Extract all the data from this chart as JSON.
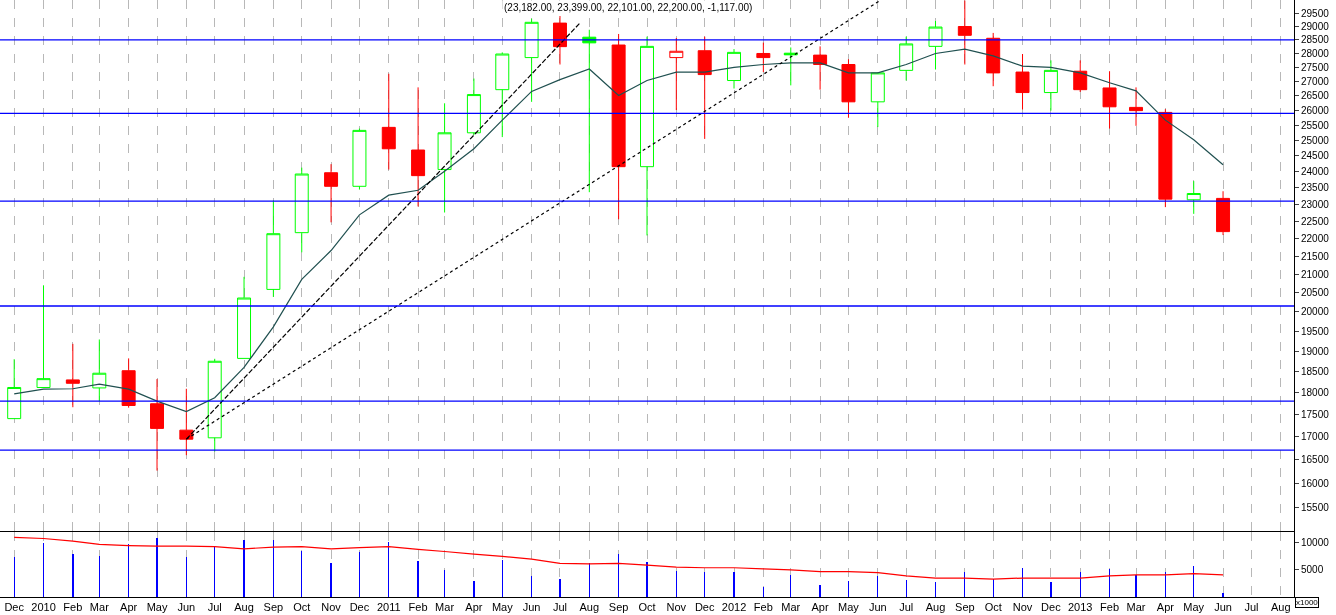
{
  "chart_data": [
    {
      "type": "candlestick",
      "title": "(23,182.00, 23,399.00, 22,101.00, 22,200.00, -1,117.00)",
      "x": [
        "2009-12",
        "2010-01",
        "2010-02",
        "2010-03",
        "2010-04",
        "2010-05",
        "2010-06",
        "2010-07",
        "2010-08",
        "2010-09",
        "2010-10",
        "2010-11",
        "2010-12",
        "2011-01",
        "2011-02",
        "2011-03",
        "2011-04",
        "2011-05",
        "2011-06",
        "2011-07",
        "2011-08",
        "2011-09",
        "2011-10",
        "2011-11",
        "2011-12",
        "2012-01",
        "2012-02",
        "2012-03",
        "2012-04",
        "2012-05",
        "2012-06",
        "2012-07",
        "2012-08",
        "2012-09",
        "2012-10",
        "2012-11",
        "2012-12",
        "2013-01",
        "2013-02",
        "2013-03",
        "2013-04",
        "2013-05",
        "2013-06"
      ],
      "ohlc": [
        [
          17400,
          18800,
          17400,
          18120
        ],
        [
          18120,
          20700,
          18120,
          18330
        ],
        [
          18300,
          19180,
          17660,
          18220
        ],
        [
          18110,
          19290,
          17800,
          18460
        ],
        [
          18520,
          18820,
          17650,
          17700
        ],
        [
          17740,
          18320,
          16260,
          17180
        ],
        [
          17140,
          18090,
          16590,
          16940
        ],
        [
          16970,
          18810,
          16670,
          18750
        ],
        [
          18820,
          20930,
          18820,
          20360
        ],
        [
          20590,
          23120,
          20390,
          22140
        ],
        [
          22170,
          24130,
          21610,
          23930
        ],
        [
          23970,
          24240,
          22470,
          23550
        ],
        [
          23550,
          25390,
          23450,
          25330
        ],
        [
          25430,
          27270,
          24070,
          24730
        ],
        [
          24690,
          26790,
          22940,
          23880
        ],
        [
          24070,
          26240,
          22760,
          25250
        ],
        [
          25250,
          27100,
          25180,
          26540
        ],
        [
          26710,
          28040,
          25110,
          27980
        ],
        [
          27850,
          29300,
          26290,
          29160
        ],
        [
          29130,
          29400,
          27600,
          28250
        ],
        [
          28600,
          28880,
          23370,
          28390
        ],
        [
          28310,
          28720,
          22560,
          24160
        ],
        [
          24160,
          28620,
          22090,
          28260
        ],
        [
          27850,
          28570,
          26010,
          28080
        ],
        [
          28100,
          28620,
          25050,
          27240
        ],
        [
          27030,
          28160,
          26750,
          28040
        ],
        [
          28000,
          28400,
          27330,
          27850
        ],
        [
          28010,
          28220,
          26860,
          27950
        ],
        [
          27940,
          28260,
          26710,
          27600
        ],
        [
          27600,
          27790,
          25750,
          26290
        ],
        [
          26290,
          27300,
          25440,
          27300
        ],
        [
          27390,
          28620,
          27030,
          28350
        ],
        [
          28260,
          29210,
          27420,
          28980
        ],
        [
          29000,
          30000,
          27600,
          28670
        ],
        [
          28560,
          28760,
          26830,
          27300
        ],
        [
          27330,
          27980,
          26030,
          26610
        ],
        [
          26610,
          27750,
          25990,
          27390
        ],
        [
          27360,
          27750,
          26630,
          26710
        ],
        [
          26770,
          27360,
          25390,
          26120
        ],
        [
          26100,
          26790,
          25480,
          25990
        ],
        [
          25930,
          26040,
          22920,
          23160
        ],
        [
          23140,
          23710,
          22720,
          23330
        ],
        [
          23182,
          23399,
          22101,
          22200
        ]
      ],
      "colors": [
        "#00ff00",
        "#00ff00",
        "#ff0000",
        "#00ff00",
        "#ff0000",
        "#ff0000",
        "#ff0000",
        "#00ff00",
        "#00ff00",
        "#00ff00",
        "#00ff00",
        "#ff0000",
        "#00ff00",
        "#ff0000",
        "#ff0000",
        "#00ff00",
        "#00ff00",
        "#00ff00",
        "#00ff00",
        "#ff0000",
        "#00ff00",
        "#ff0000",
        "#00ff00",
        "#ff0000",
        "#ff0000",
        "#00ff00",
        "#ff0000",
        "#00ff00",
        "#ff0000",
        "#ff0000",
        "#00ff00",
        "#00ff00",
        "#00ff00",
        "#ff0000",
        "#ff0000",
        "#ff0000",
        "#00ff00",
        "#ff0000",
        "#ff0000",
        "#ff0000",
        "#ff0000",
        "#00ff00",
        "#ff0000"
      ],
      "series": [
        {
          "type": "line",
          "color": "#205050",
          "values": [
            17970,
            18080,
            18090,
            18200,
            18080,
            17800,
            17560,
            17880,
            18600,
            19610,
            20860,
            21660,
            22690,
            23280,
            23430,
            24020,
            24730,
            25670,
            26650,
            27060,
            27440,
            26510,
            27030,
            27330,
            27330,
            27500,
            27600,
            27660,
            27660,
            27300,
            27300,
            27600,
            28000,
            28160,
            27910,
            27540,
            27500,
            27300,
            26950,
            26670,
            25670,
            25020,
            24220
          ]
        },
        {
          "type": "line",
          "color": "#000000",
          "line_style": "dashed",
          "x": [
            "2010-06",
            "2011-07-22"
          ],
          "values": [
            16940,
            29130
          ]
        },
        {
          "type": "line",
          "color": "#000000",
          "line_style": "dotted",
          "x": [
            "2010-06",
            "2012-06-03"
          ],
          "values": [
            16940,
            29990
          ]
        }
      ],
      "ref_lines": [
        {
          "axis": "y",
          "value": 28500,
          "color": "#0000ff"
        },
        {
          "axis": "y",
          "value": 25900,
          "color": "#0000ff"
        },
        {
          "axis": "y",
          "value": 23100,
          "color": "#0000ff"
        },
        {
          "axis": "y",
          "value": 20150,
          "color": "#0000ff"
        },
        {
          "axis": "y",
          "value": 17800,
          "color": "#0000ff"
        },
        {
          "axis": "y",
          "value": 16700,
          "color": "#0000ff"
        }
      ],
      "log": "y",
      "grid": "x",
      "tick_labels": "y",
      "xlim": [
        "2009-11-16",
        "2013-08-15"
      ],
      "ylim": [
        15030,
        30020
      ],
      "yticks": [
        15500,
        16000,
        16500,
        17000,
        17500,
        18000,
        18500,
        19000,
        19500,
        20000,
        20500,
        21000,
        21500,
        22000,
        22500,
        23000,
        23500,
        24000,
        24500,
        25000,
        25500,
        26000,
        26500,
        27000,
        27500,
        28000,
        28500,
        29000,
        29500
      ]
    },
    {
      "type": "bar",
      "x": [
        "2009-12",
        "2010-01",
        "2010-02",
        "2010-03",
        "2010-04",
        "2010-05",
        "2010-06",
        "2010-07",
        "2010-08",
        "2010-09",
        "2010-10",
        "2010-11",
        "2010-12",
        "2011-01",
        "2011-02",
        "2011-03",
        "2011-04",
        "2011-05",
        "2011-06",
        "2011-07",
        "2011-08",
        "2011-09",
        "2011-10",
        "2011-11",
        "2011-12",
        "2012-01",
        "2012-02",
        "2012-03",
        "2012-04",
        "2012-05",
        "2012-06",
        "2012-07",
        "2012-08",
        "2012-09",
        "2012-10",
        "2012-11",
        "2012-12",
        "2013-01",
        "2013-02",
        "2013-03",
        "2013-04",
        "2013-05",
        "2013-06"
      ],
      "series": [
        {
          "type": "bar",
          "color": "#0000ff",
          "values": [
            7400,
            10000,
            8000,
            7600,
            9800,
            10900,
            7400,
            9400,
            10600,
            10600,
            8500,
            6200,
            8400,
            10100,
            6600,
            5000,
            3000,
            6800,
            3900,
            3300,
            6200,
            7900,
            6400,
            4800,
            4600,
            4600,
            1800,
            4000,
            2200,
            3000,
            3800,
            3200,
            2700,
            4600,
            3400,
            5400,
            2700,
            4600,
            5200,
            4000,
            4600,
            5800,
            800
          ]
        },
        {
          "type": "line",
          "color": "#ff0000",
          "values": [
            11000,
            10800,
            10300,
            9700,
            9500,
            9400,
            9400,
            9300,
            8900,
            9200,
            9300,
            8900,
            9100,
            9300,
            8800,
            8400,
            7900,
            7500,
            7000,
            6200,
            6100,
            6200,
            5900,
            5500,
            5400,
            5400,
            5200,
            5000,
            4700,
            4700,
            4500,
            3900,
            3500,
            3500,
            3300,
            3500,
            3500,
            3500,
            3900,
            4100,
            4100,
            4300,
            4100
          ]
        }
      ],
      "annotations": [
        "x1000"
      ],
      "grid": "x",
      "xlim": [
        "2009-11-16",
        "2013-08-15"
      ],
      "xticks": [
        {
          "value": "2009-12",
          "label": "Dec"
        },
        {
          "value": "2010-01",
          "label": "2010"
        },
        {
          "value": "2010-02",
          "label": "Feb"
        },
        {
          "value": "2010-03",
          "label": "Mar"
        },
        {
          "value": "2010-04",
          "label": "Apr"
        },
        {
          "value": "2010-05",
          "label": "May"
        },
        {
          "value": "2010-06",
          "label": "Jun"
        },
        {
          "value": "2010-07",
          "label": "Jul"
        },
        {
          "value": "2010-08",
          "label": "Aug"
        },
        {
          "value": "2010-09",
          "label": "Sep"
        },
        {
          "value": "2010-10",
          "label": "Oct"
        },
        {
          "value": "2010-11",
          "label": "Nov"
        },
        {
          "value": "2010-12",
          "label": "Dec"
        },
        {
          "value": "2011-01",
          "label": "2011"
        },
        {
          "value": "2011-02",
          "label": "Feb"
        },
        {
          "value": "2011-03",
          "label": "Mar"
        },
        {
          "value": "2011-04",
          "label": "Apr"
        },
        {
          "value": "2011-05",
          "label": "May"
        },
        {
          "value": "2011-06",
          "label": "Jun"
        },
        {
          "value": "2011-07",
          "label": "Jul"
        },
        {
          "value": "2011-08",
          "label": "Aug"
        },
        {
          "value": "2011-09",
          "label": "Sep"
        },
        {
          "value": "2011-10",
          "label": "Oct"
        },
        {
          "value": "2011-11",
          "label": "Nov"
        },
        {
          "value": "2011-12",
          "label": "Dec"
        },
        {
          "value": "2012-01",
          "label": "2012"
        },
        {
          "value": "2012-02",
          "label": "Feb"
        },
        {
          "value": "2012-03",
          "label": "Mar"
        },
        {
          "value": "2012-04",
          "label": "Apr"
        },
        {
          "value": "2012-05",
          "label": "May"
        },
        {
          "value": "2012-06",
          "label": "Jun"
        },
        {
          "value": "2012-07",
          "label": "Jul"
        },
        {
          "value": "2012-08",
          "label": "Aug"
        },
        {
          "value": "2012-09",
          "label": "Sep"
        },
        {
          "value": "2012-10",
          "label": "Oct"
        },
        {
          "value": "2012-11",
          "label": "Nov"
        },
        {
          "value": "2012-12",
          "label": "Dec"
        },
        {
          "value": "2013-01",
          "label": "2013"
        },
        {
          "value": "2013-02",
          "label": "Feb"
        },
        {
          "value": "2013-03",
          "label": "Mar"
        },
        {
          "value": "2013-04",
          "label": "Apr"
        },
        {
          "value": "2013-05",
          "label": "May"
        },
        {
          "value": "2013-06",
          "label": "Jun"
        },
        {
          "value": "2013-07",
          "label": "Jul"
        },
        {
          "value": "2013-08",
          "label": "Aug"
        }
      ],
      "ylim": [
        0,
        12000
      ],
      "yticks": [
        5000,
        10000
      ]
    }
  ]
}
